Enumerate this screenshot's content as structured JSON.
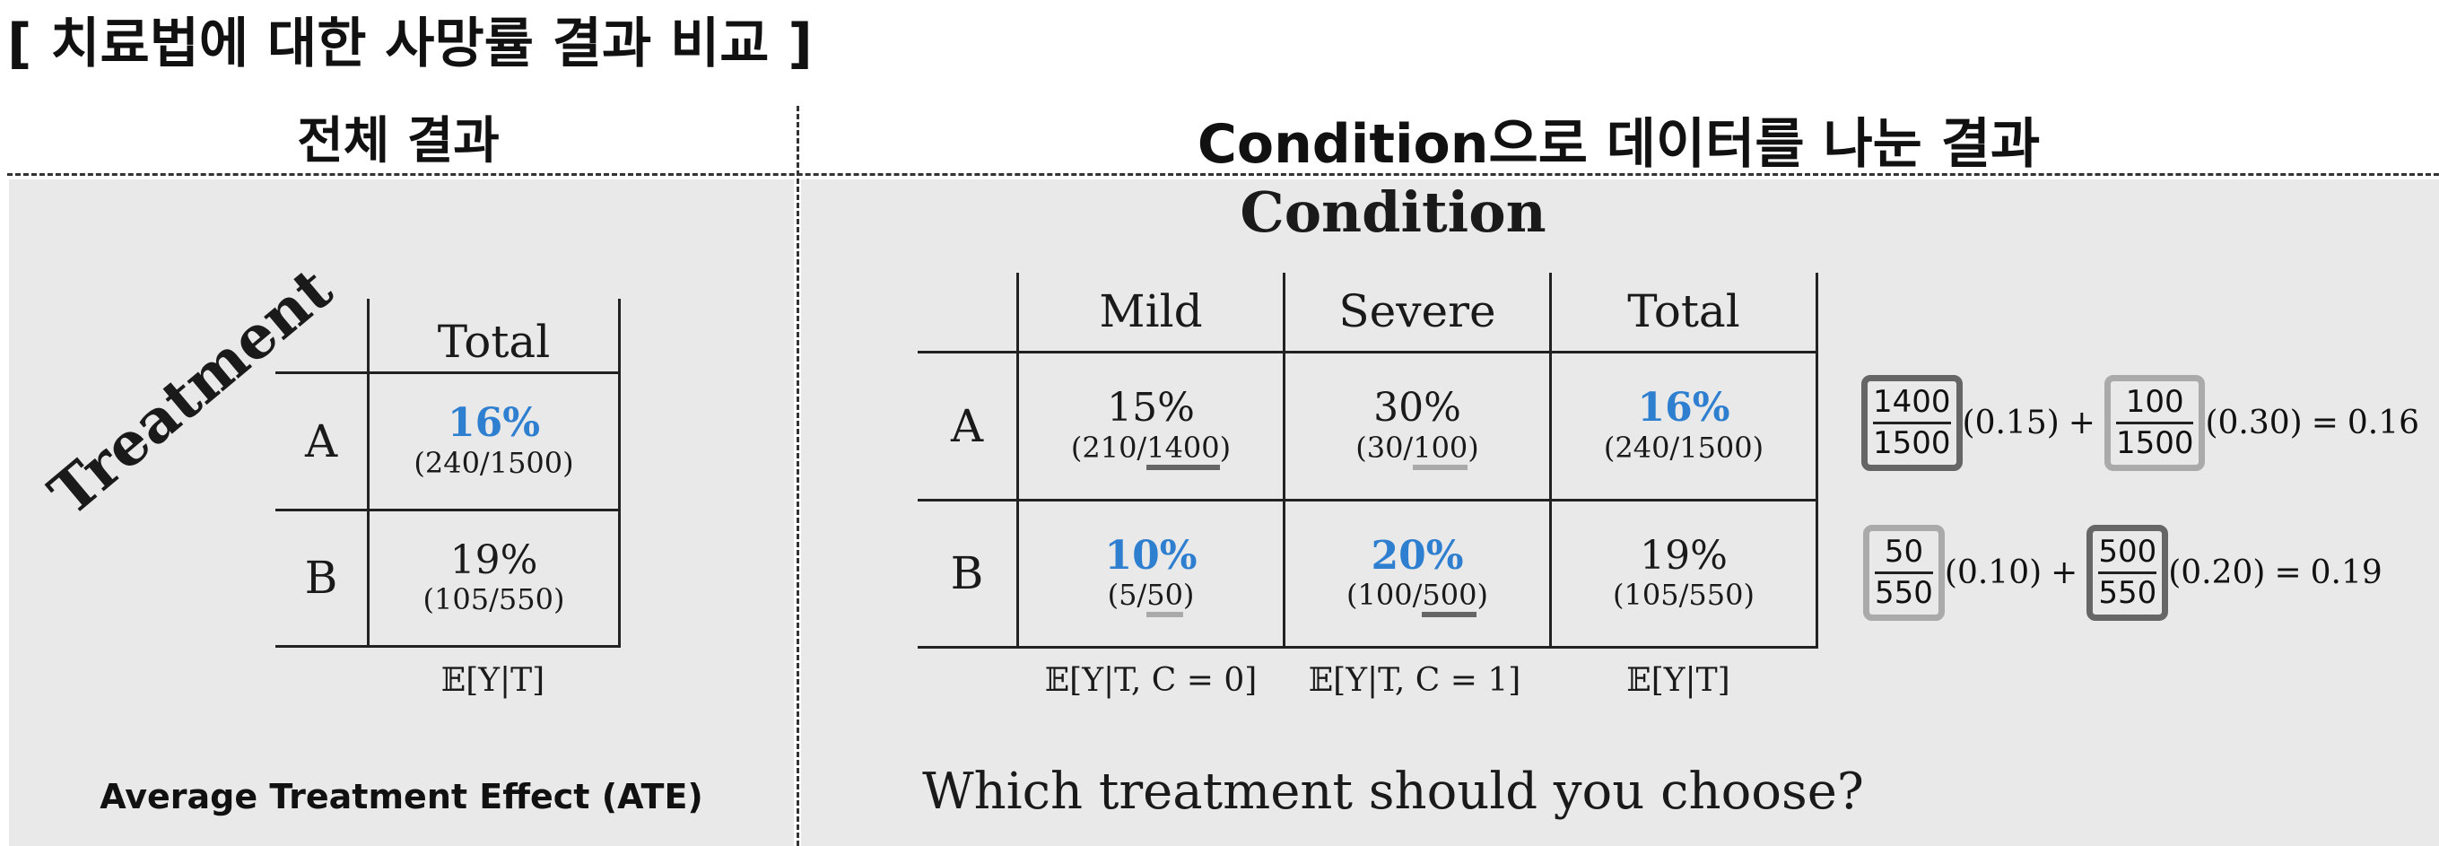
{
  "title": "[ 치료법에 대한 사망률 결과 비교 ]",
  "headers": {
    "left": "전체 결과",
    "right": "Condition으로 데이터를 나눈 결과"
  },
  "left_panel": {
    "axis_label": "Treatment",
    "col_header": "Total",
    "rows": [
      {
        "label": "A",
        "pct": "16%",
        "frac": "(240/1500)"
      },
      {
        "label": "B",
        "pct": "19%",
        "frac": "(105/550)"
      }
    ],
    "expectation": "𝔼[Y|T]",
    "footer": "Average Treatment Effect (ATE)"
  },
  "right_panel": {
    "title": "Condition",
    "col_headers": [
      "Mild",
      "Severe",
      "Total"
    ],
    "rows": [
      {
        "label": "A",
        "mild": {
          "pct": "15%",
          "pre": "(210/",
          "den": "1400",
          "post": ")"
        },
        "severe": {
          "pct": "30%",
          "pre": "(30/",
          "den": "100",
          "post": ")"
        },
        "total": {
          "pct": "16%",
          "frac": "(240/1500)"
        }
      },
      {
        "label": "B",
        "mild": {
          "pct": "10%",
          "pre": "(5/",
          "den": "50",
          "post": ")"
        },
        "severe": {
          "pct": "20%",
          "pre": "(100/",
          "den": "500",
          "post": ")"
        },
        "total": {
          "pct": "19%",
          "frac": "(105/550)"
        }
      }
    ],
    "expectations": [
      "𝔼[Y|T, C = 0]",
      "𝔼[Y|T, C = 1]",
      "𝔼[Y|T]"
    ],
    "question": "Which treatment should you choose?",
    "equations": [
      {
        "f1_num": "1400",
        "f1_den": "1500",
        "w1": "(0.15)",
        "plus": "+",
        "f2_num": "100",
        "f2_den": "1500",
        "w2": "(0.30)",
        "eq": "=",
        "result": "0.16"
      },
      {
        "f1_num": "50",
        "f1_den": "550",
        "w1": "(0.10)",
        "plus": "+",
        "f2_num": "500",
        "f2_den": "550",
        "w2": "(0.20)",
        "eq": "=",
        "result": "0.19"
      }
    ]
  },
  "colors": {
    "highlight": "#2f7fd0",
    "panel_bg": "#e9e9e9",
    "box_dark": "#666666",
    "box_light": "#aaaaaa"
  }
}
